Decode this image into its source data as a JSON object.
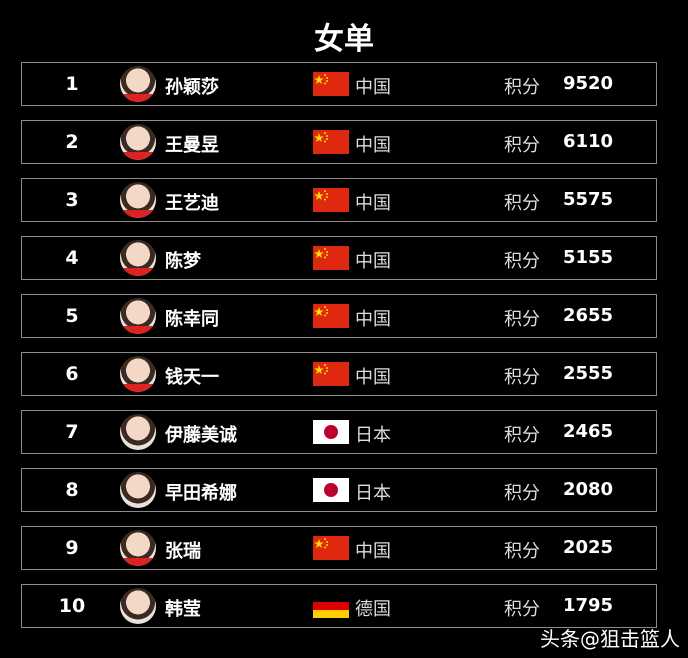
{
  "title": "女单",
  "points_label": "积分",
  "watermark": "头条@狙击篮人",
  "flag_colors": {
    "china": "#de2910",
    "japan_red": "#bc002d",
    "germany": [
      "#000000",
      "#dd0000",
      "#ffce00"
    ]
  },
  "rows": [
    {
      "rank": "1",
      "name": "孙颖莎",
      "country": "中国",
      "flag": "china",
      "score": "9520"
    },
    {
      "rank": "2",
      "name": "王曼昱",
      "country": "中国",
      "flag": "china",
      "score": "6110"
    },
    {
      "rank": "3",
      "name": "王艺迪",
      "country": "中国",
      "flag": "china",
      "score": "5575"
    },
    {
      "rank": "4",
      "name": "陈梦",
      "country": "中国",
      "flag": "china",
      "score": "5155"
    },
    {
      "rank": "5",
      "name": "陈幸同",
      "country": "中国",
      "flag": "china",
      "score": "2655"
    },
    {
      "rank": "6",
      "name": "钱天一",
      "country": "中国",
      "flag": "china",
      "score": "2555"
    },
    {
      "rank": "7",
      "name": "伊藤美诚",
      "country": "日本",
      "flag": "japan",
      "score": "2465"
    },
    {
      "rank": "8",
      "name": "早田希娜",
      "country": "日本",
      "flag": "japan",
      "score": "2080"
    },
    {
      "rank": "9",
      "name": "张瑞",
      "country": "中国",
      "flag": "china",
      "score": "2025"
    },
    {
      "rank": "10",
      "name": "韩莹",
      "country": "德国",
      "flag": "germany",
      "score": "1795"
    }
  ]
}
